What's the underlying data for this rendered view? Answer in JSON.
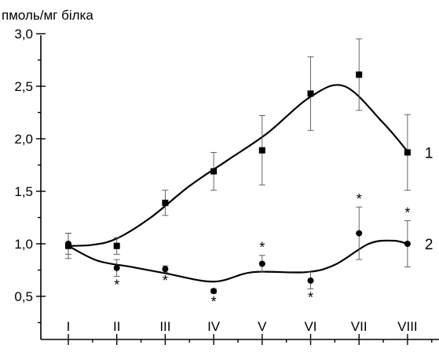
{
  "chart_data": {
    "type": "line",
    "ylabel": "пмоль/мг білка",
    "categories": [
      "I",
      "II",
      "III",
      "IV",
      "V",
      "VI",
      "VII",
      "VIII"
    ],
    "ylim": [
      0.2,
      3.0
    ],
    "yticks": [
      0.5,
      1.0,
      1.5,
      2.0,
      2.5,
      3.0
    ],
    "ytick_labels": [
      "0,5",
      "1,0",
      "1,5",
      "2,0",
      "2,5",
      "3,0"
    ],
    "grid": false,
    "series": [
      {
        "name": "1",
        "marker": "square",
        "values": [
          0.98,
          0.98,
          1.39,
          1.69,
          1.89,
          2.43,
          2.61,
          1.87
        ],
        "error": [
          0.12,
          0.08,
          0.12,
          0.18,
          0.33,
          0.35,
          0.34,
          0.36
        ],
        "significant": [
          false,
          false,
          false,
          false,
          false,
          false,
          false,
          false
        ]
      },
      {
        "name": "2",
        "marker": "circle",
        "values": [
          1.0,
          0.77,
          0.76,
          0.55,
          0.81,
          0.65,
          1.1,
          1.0
        ],
        "error": [
          0.1,
          0.08,
          0.03,
          0.02,
          0.08,
          0.08,
          0.25,
          0.22
        ],
        "significant": [
          false,
          true,
          true,
          true,
          true,
          true,
          true,
          true
        ],
        "significance_marker": "*"
      }
    ]
  }
}
